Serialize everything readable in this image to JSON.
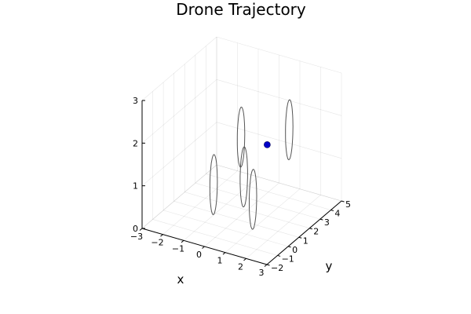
{
  "chart_data": {
    "type": "scatter",
    "projection": "3d",
    "title": "Drone Trajectory",
    "xlabel": "x",
    "ylabel": "y",
    "zlabel": "",
    "xlim": [
      -3,
      3
    ],
    "ylim": [
      -2,
      5
    ],
    "zlim": [
      0,
      3
    ],
    "xticks": [
      -3,
      -2,
      -1,
      0,
      1,
      2,
      3
    ],
    "yticks": [
      -2,
      -1,
      0,
      1,
      2,
      3,
      4,
      5
    ],
    "zticks": [
      0,
      1,
      2,
      3
    ],
    "grid": true,
    "legend": "none",
    "gates": [
      {
        "center": [
          -1.2,
          1.2,
          0.6
        ],
        "radius_y": 0.35,
        "radius_z": 0.7
      },
      {
        "center": [
          0.1,
          1.5,
          0.9
        ],
        "radius_y": 0.35,
        "radius_z": 0.7
      },
      {
        "center": [
          1.1,
          0.4,
          0.75
        ],
        "radius_y": 0.35,
        "radius_z": 0.7
      },
      {
        "center": [
          -0.6,
          2.6,
          1.5
        ],
        "radius_y": 0.35,
        "radius_z": 0.7
      },
      {
        "center": [
          1.0,
          4.0,
          1.6
        ],
        "radius_y": 0.35,
        "radius_z": 0.7
      }
    ],
    "points": [
      {
        "x": 0.3,
        "y": 3.3,
        "z": 1.3
      }
    ],
    "colors": {
      "point": "#0000c8",
      "gate": "#555555",
      "axis": "#000000"
    }
  }
}
